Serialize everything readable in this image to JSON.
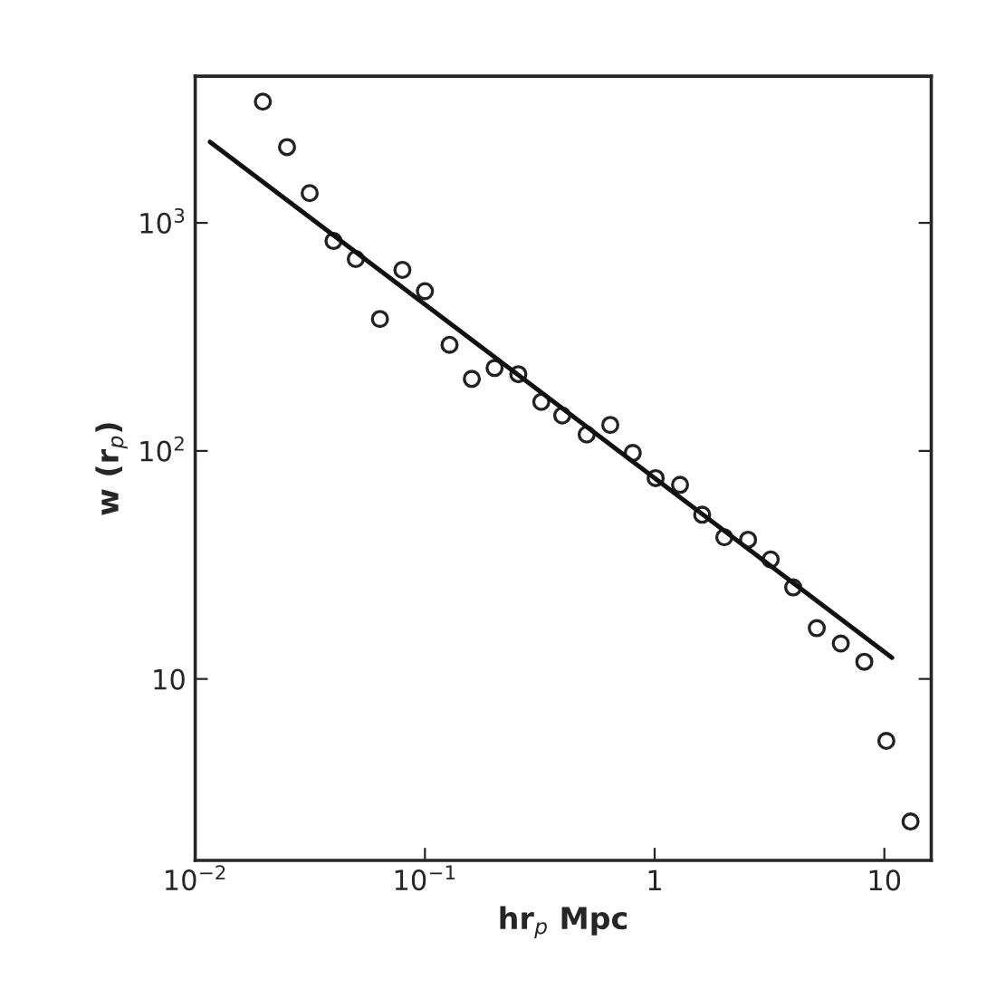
{
  "chart_data": {
    "type": "scatter",
    "xlabel": "hr$_{p}$ Mpc",
    "ylabel": "w (r$_{p}$)",
    "log": "xy",
    "grid": false,
    "xlim": [
      0.01,
      16
    ],
    "ylim": [
      1.6,
      4400
    ],
    "xticks": [
      {
        "value": 0.01,
        "label": "10$^{−2}$"
      },
      {
        "value": 0.1,
        "label": "10$^{−1}$"
      },
      1,
      10
    ],
    "yticks": [
      10,
      {
        "value": 100,
        "label": "10$^{2}$"
      },
      {
        "value": 1000,
        "label": "10$^{3}$"
      }
    ],
    "series": [
      {
        "marker": "circle",
        "color": "#222222",
        "x": [
          0.0197,
          0.0251,
          0.0315,
          0.04,
          0.05,
          0.0637,
          0.0798,
          0.1,
          0.128,
          0.16,
          0.201,
          0.255,
          0.321,
          0.396,
          0.506,
          0.641,
          0.803,
          1.01,
          1.29,
          1.61,
          2.01,
          2.55,
          3.2,
          4.01,
          5.08,
          6.46,
          8.18,
          10.2,
          13.0
        ],
        "values": [
          3400,
          2150,
          1350,
          833,
          694,
          379,
          622,
          502,
          292,
          207,
          231,
          217,
          164,
          143,
          118,
          130,
          98,
          76,
          71,
          52.5,
          41.8,
          40.8,
          33.4,
          25.2,
          16.7,
          14.3,
          11.9,
          5.35,
          2.37
        ]
      },
      {
        "type": "line",
        "marker": "none",
        "color": "#111111",
        "line_style": "solid",
        "x": [
          0.0116,
          10.8
        ],
        "values": [
          2265,
          12.4
        ]
      }
    ]
  }
}
